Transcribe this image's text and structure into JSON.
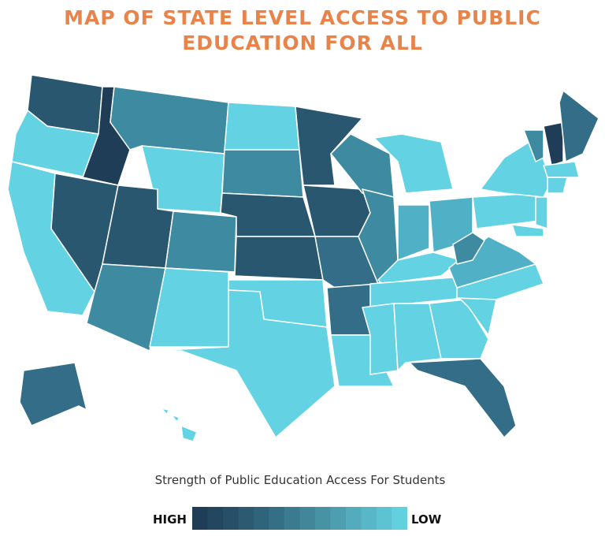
{
  "header": {
    "title_line1": "MAP OF STATE LEVEL ACCESS TO PUBLIC",
    "title_line2": "EDUCATION FOR ALL"
  },
  "legend": {
    "caption": "Strength of Public Education Access For Students",
    "high_label": "HIGH",
    "low_label": "LOW"
  }
}
